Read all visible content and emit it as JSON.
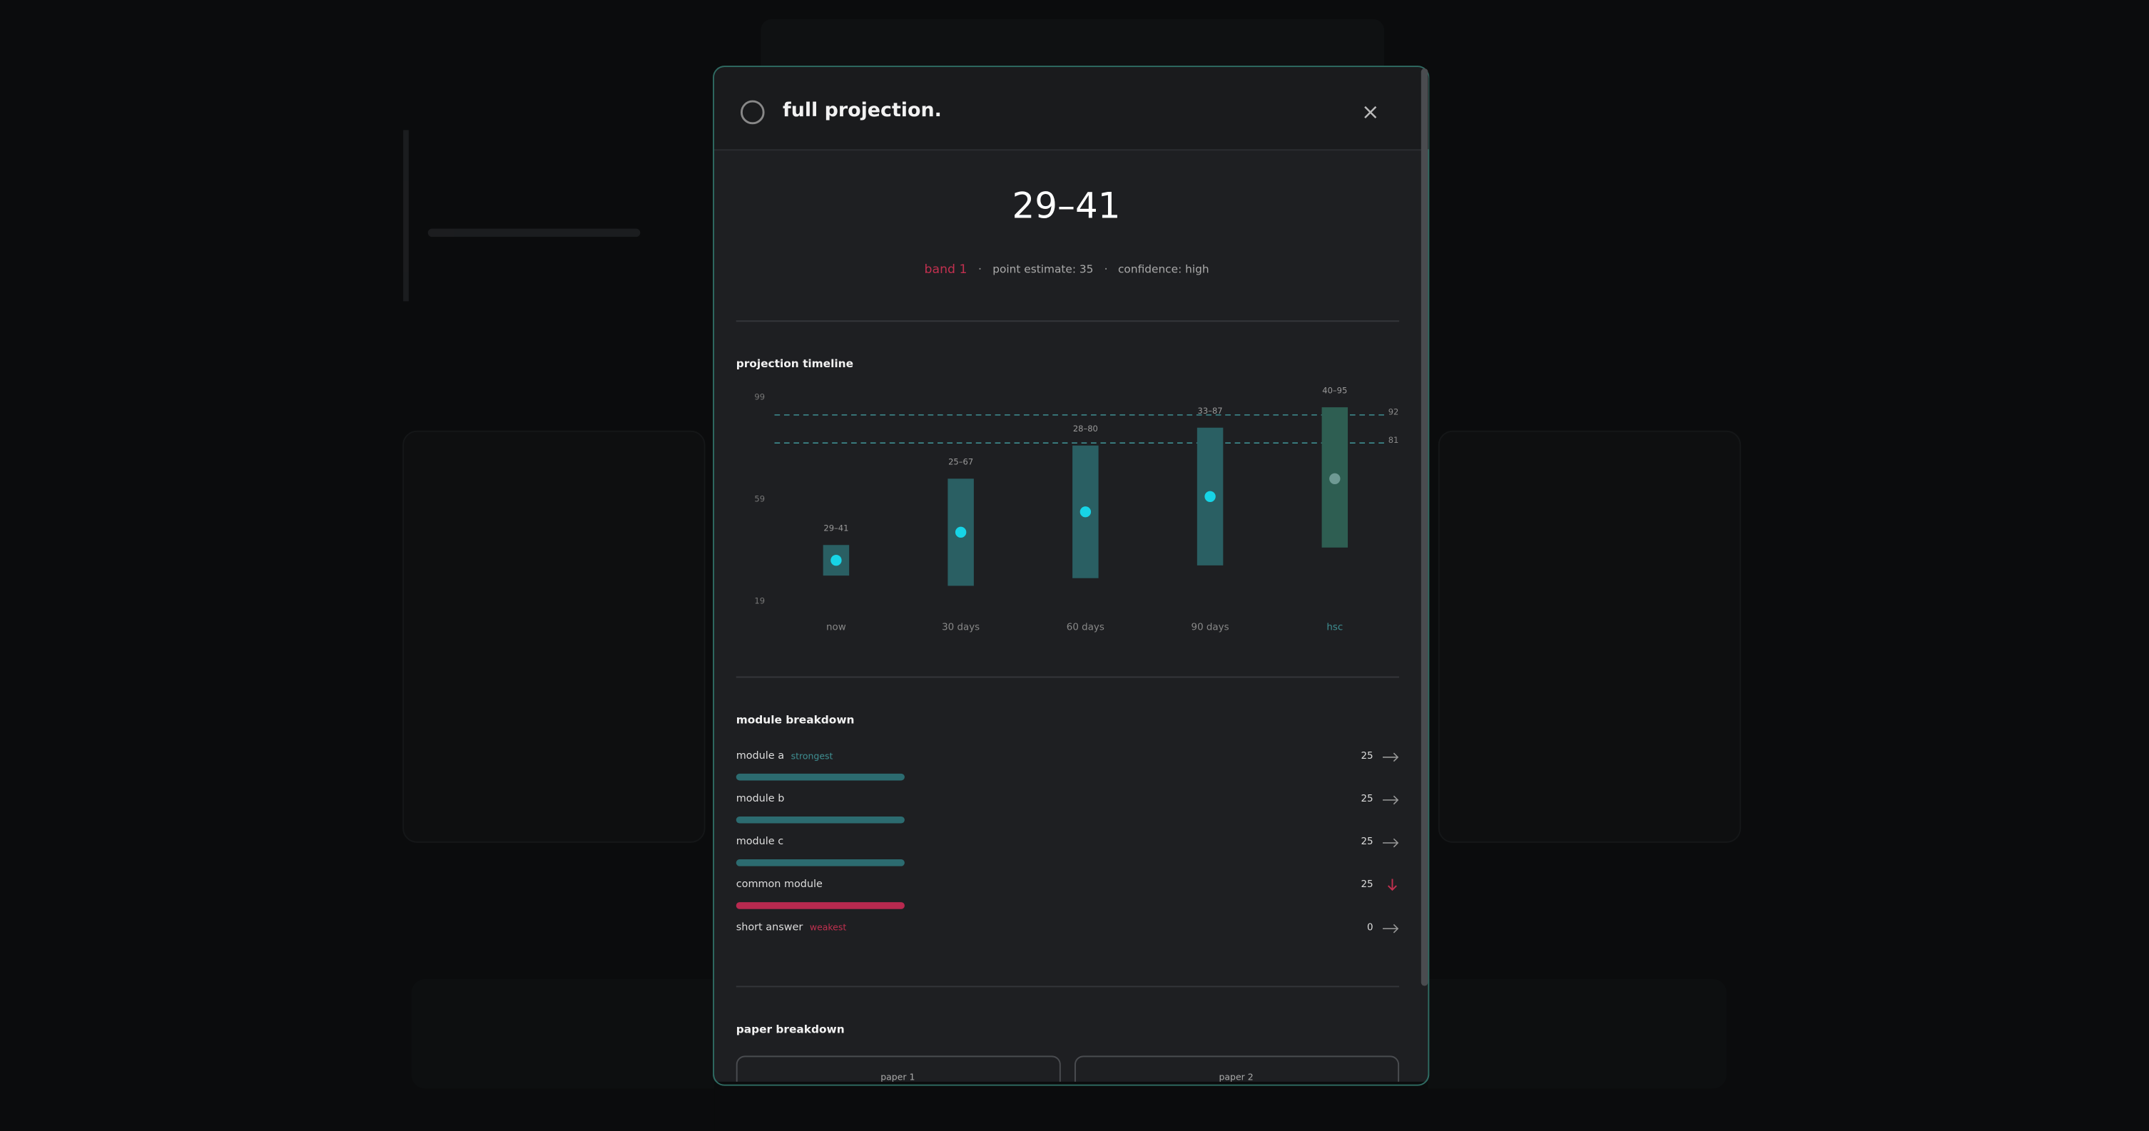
{
  "modal": {
    "title": "full projection.",
    "score": "29–41",
    "band": "band 1",
    "point_estimate": "point estimate: 35",
    "confidence": "confidence: high"
  },
  "chart_data": {
    "type": "range_bar",
    "title": "projection timeline",
    "categories": [
      "now",
      "30 days",
      "60 days",
      "90 days",
      "hsc"
    ],
    "low": [
      29,
      25,
      28,
      33,
      40
    ],
    "high": [
      41,
      67,
      80,
      87,
      95
    ],
    "range_labels": [
      "29–41",
      "25–67",
      "28–80",
      "33–87",
      "40–95"
    ],
    "values": [
      35,
      46,
      54,
      60,
      67
    ],
    "ylim": [
      19,
      99
    ],
    "yticks": [
      19,
      59,
      99
    ],
    "reference_lines": [
      92,
      81
    ],
    "bar_colors": [
      "#2a5f63",
      "#2a5f63",
      "#2a5f63",
      "#2a5f63",
      "#2e5e52"
    ],
    "point_colors": [
      "#17d4e6",
      "#17d4e6",
      "#17d4e6",
      "#17d4e6",
      "#6f9a94"
    ],
    "reference_color": "#3f8f92"
  },
  "modules": {
    "title": "module breakdown",
    "items": [
      {
        "name": "module a",
        "tag": "strongest",
        "tag_color": "#3f8f92",
        "value": 25,
        "color": "#2c6b70",
        "trend": "flat"
      },
      {
        "name": "module b",
        "value": 25,
        "color": "#2c6b70",
        "trend": "flat"
      },
      {
        "name": "module c",
        "value": 25,
        "color": "#2c6b70",
        "trend": "flat"
      },
      {
        "name": "common module",
        "value": 25,
        "color": "#b8294f",
        "trend": "down"
      },
      {
        "name": "short answer",
        "tag": "weakest",
        "tag_color": "#c0304f",
        "value": 0,
        "color": "#b8294f",
        "trend": "flat"
      }
    ]
  },
  "papers": {
    "title": "paper breakdown",
    "items": [
      "paper 1",
      "paper 2"
    ]
  }
}
